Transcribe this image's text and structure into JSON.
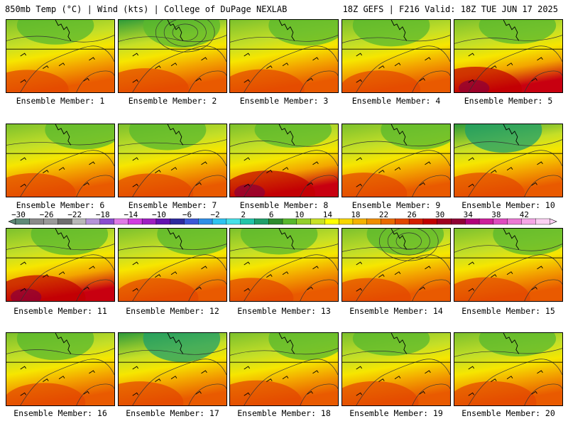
{
  "header": {
    "left": "850mb Temp (°C) | Wind (kts) | College of DuPage NEXLAB",
    "right": "18Z GEFS | F216 Valid: 18Z TUE JUN 17 2025"
  },
  "colorbar": {
    "tick_labels": [
      "−30",
      "−26",
      "−22",
      "−18",
      "−14",
      "−10",
      "−6",
      "−2",
      "2",
      "6",
      "10",
      "14",
      "18",
      "22",
      "26",
      "30",
      "34",
      "38",
      "42"
    ],
    "colors": [
      "#5f8a78",
      "#8a8a8a",
      "#9a9a9a",
      "#6e6e6e",
      "#b8b8b8",
      "#b593d9",
      "#8a4bd0",
      "#e07be7",
      "#d13ce0",
      "#9e1fc2",
      "#6312b0",
      "#2d2a9e",
      "#3b58d6",
      "#2f8fe8",
      "#2ec3f0",
      "#47e0e8",
      "#22c4a8",
      "#1f9f6a",
      "#2e8b2e",
      "#58b82d",
      "#94cf2c",
      "#c9e126",
      "#ffff00",
      "#f7d600",
      "#f4b200",
      "#ef8e00",
      "#e96a00",
      "#e24600",
      "#d41f00",
      "#c10000",
      "#a00020",
      "#8f0035",
      "#b0007a",
      "#cc1f9a",
      "#df4bbf",
      "#ec79d4",
      "#f6a6e6",
      "#fcd0f3"
    ]
  },
  "panels": [
    {
      "label": "Ensemble Member: 1",
      "warm": 0.55,
      "cool": 0.3,
      "low": false
    },
    {
      "label": "Ensemble Member: 2",
      "warm": 0.7,
      "cool": 0.55,
      "low": true
    },
    {
      "label": "Ensemble Member: 3",
      "warm": 0.6,
      "cool": 0.4,
      "low": false
    },
    {
      "label": "Ensemble Member: 4",
      "warm": 0.5,
      "cool": 0.45,
      "low": false
    },
    {
      "label": "Ensemble Member: 5",
      "warm": 0.85,
      "cool": 0.25,
      "low": false
    },
    {
      "label": "Ensemble Member: 6",
      "warm": 0.65,
      "cool": 0.35,
      "low": false
    },
    {
      "label": "Ensemble Member: 7",
      "warm": 0.62,
      "cool": 0.4,
      "low": false
    },
    {
      "label": "Ensemble Member: 8",
      "warm": 0.9,
      "cool": 0.2,
      "low": false
    },
    {
      "label": "Ensemble Member: 9",
      "warm": 0.7,
      "cool": 0.35,
      "low": false
    },
    {
      "label": "Ensemble Member: 10",
      "warm": 0.7,
      "cool": 0.6,
      "low": false
    },
    {
      "label": "Ensemble Member: 11",
      "warm": 0.88,
      "cool": 0.45,
      "low": false
    },
    {
      "label": "Ensemble Member: 12",
      "warm": 0.6,
      "cool": 0.45,
      "low": false
    },
    {
      "label": "Ensemble Member: 13",
      "warm": 0.62,
      "cool": 0.4,
      "low": false
    },
    {
      "label": "Ensemble Member: 14",
      "warm": 0.6,
      "cool": 0.45,
      "low": true
    },
    {
      "label": "Ensemble Member: 15",
      "warm": 0.68,
      "cool": 0.45,
      "low": false
    },
    {
      "label": "Ensemble Member: 16",
      "warm": 0.55,
      "cool": 0.5,
      "low": false
    },
    {
      "label": "Ensemble Member: 17",
      "warm": 0.7,
      "cool": 0.65,
      "low": false
    },
    {
      "label": "Ensemble Member: 18",
      "warm": 0.8,
      "cool": 0.5,
      "low": false
    },
    {
      "label": "Ensemble Member: 19",
      "warm": 0.72,
      "cool": 0.15,
      "low": false
    },
    {
      "label": "Ensemble Member: 20",
      "warm": 0.72,
      "cool": 0.2,
      "low": false
    }
  ]
}
